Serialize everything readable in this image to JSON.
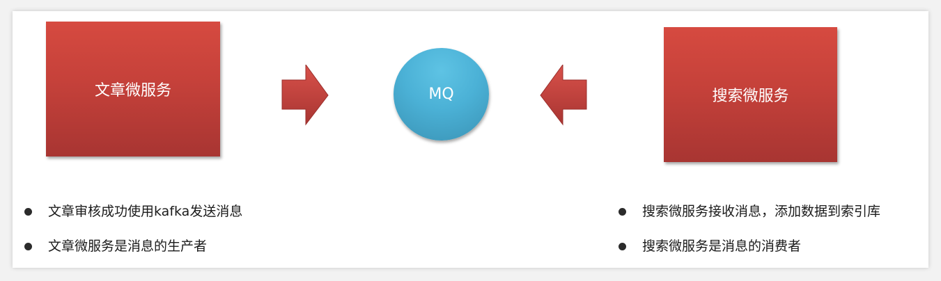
{
  "producer": {
    "label": "文章微服务",
    "notes": [
      "文章审核成功使用kafka发送消息",
      "文章微服务是消息的生产者"
    ]
  },
  "broker": {
    "label": "MQ"
  },
  "consumer": {
    "label": "搜索微服务",
    "notes": [
      "搜索微服务接收消息，添加数据到索引库",
      "搜索微服务是消息的消费者"
    ]
  },
  "colors": {
    "box_red": "#c5413a",
    "circle_blue": "#4bb1d6",
    "arrow_red": "#c9453d"
  },
  "icons": {
    "arrow_left": "right-arrow-icon",
    "arrow_right": "left-arrow-icon"
  }
}
